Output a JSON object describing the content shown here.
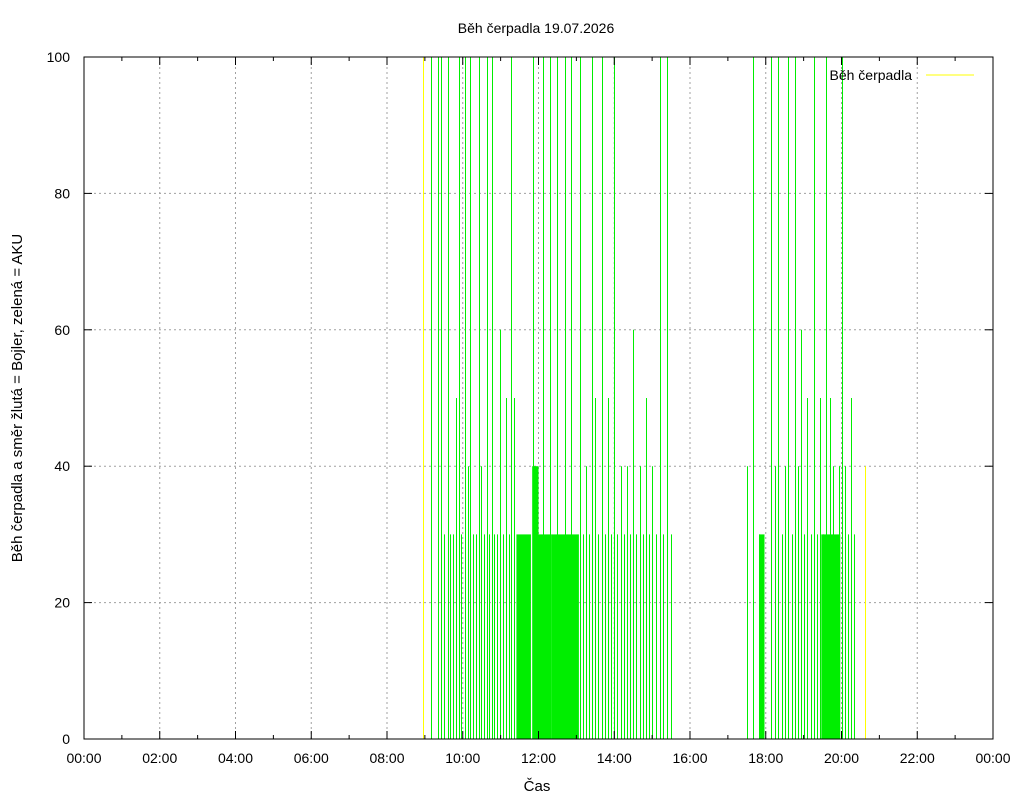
{
  "chart_data": {
    "type": "line",
    "title": "Běh čerpadla 19.07.2026",
    "xlabel": "Čas",
    "ylabel": "Běh čerpadla a směr žlutá = Bojler, zelená = AKU",
    "xlim": [
      "00:00",
      "24:00"
    ],
    "ylim": [
      0,
      100
    ],
    "x_ticks": [
      "00:00",
      "02:00",
      "04:00",
      "06:00",
      "08:00",
      "10:00",
      "12:00",
      "14:00",
      "16:00",
      "18:00",
      "20:00",
      "22:00",
      "00:00"
    ],
    "y_ticks": [
      "0",
      "20",
      "40",
      "60",
      "80",
      "100"
    ],
    "grid": true,
    "legend": {
      "position": "top-right",
      "entries": [
        {
          "name": "Běh čerpadla",
          "color": "#ffff00"
        }
      ]
    },
    "series": [
      {
        "color": "#00ee00",
        "spikes": [
          {
            "t": "09:10",
            "v": 100
          },
          {
            "t": "09:21",
            "v": 100
          },
          {
            "t": "09:26",
            "v": 100
          },
          {
            "t": "09:31",
            "v": 30
          },
          {
            "t": "09:36",
            "v": 100
          },
          {
            "t": "09:40",
            "v": 30
          },
          {
            "t": "09:45",
            "v": 30
          },
          {
            "t": "09:49",
            "v": 50
          },
          {
            "t": "09:54",
            "v": 100
          },
          {
            "t": "09:58",
            "v": 30
          },
          {
            "t": "10:03",
            "v": 100
          },
          {
            "t": "10:08",
            "v": 40
          },
          {
            "t": "10:12",
            "v": 100
          },
          {
            "t": "10:16",
            "v": 30
          },
          {
            "t": "10:21",
            "v": 30
          },
          {
            "t": "10:25",
            "v": 100
          },
          {
            "t": "10:29",
            "v": 40
          },
          {
            "t": "10:33",
            "v": 30
          },
          {
            "t": "10:38",
            "v": 100
          },
          {
            "t": "10:42",
            "v": 30
          },
          {
            "t": "10:46",
            "v": 100
          },
          {
            "t": "10:50",
            "v": 30
          },
          {
            "t": "10:55",
            "v": 30
          },
          {
            "t": "10:59",
            "v": 60
          },
          {
            "t": "11:03",
            "v": 30
          },
          {
            "t": "11:08",
            "v": 50
          },
          {
            "t": "11:13",
            "v": 30
          },
          {
            "t": "11:17",
            "v": 100
          },
          {
            "t": "11:21",
            "v": 50
          },
          {
            "t": "11:51",
            "v": 100
          },
          {
            "t": "12:07",
            "v": 100
          },
          {
            "t": "12:18",
            "v": 100
          },
          {
            "t": "12:29",
            "v": 100
          },
          {
            "t": "12:42",
            "v": 100
          },
          {
            "t": "12:52",
            "v": 100
          },
          {
            "t": "13:05",
            "v": 100
          },
          {
            "t": "13:10",
            "v": 30
          },
          {
            "t": "13:15",
            "v": 40
          },
          {
            "t": "13:20",
            "v": 30
          },
          {
            "t": "13:25",
            "v": 100
          },
          {
            "t": "13:30",
            "v": 50
          },
          {
            "t": "13:35",
            "v": 30
          },
          {
            "t": "13:40",
            "v": 100
          },
          {
            "t": "13:45",
            "v": 30
          },
          {
            "t": "13:50",
            "v": 50
          },
          {
            "t": "13:55",
            "v": 30
          },
          {
            "t": "14:00",
            "v": 100
          },
          {
            "t": "14:05",
            "v": 30
          },
          {
            "t": "14:10",
            "v": 40
          },
          {
            "t": "14:15",
            "v": 30
          },
          {
            "t": "14:20",
            "v": 40
          },
          {
            "t": "14:25",
            "v": 30
          },
          {
            "t": "14:30",
            "v": 60
          },
          {
            "t": "14:35",
            "v": 30
          },
          {
            "t": "14:40",
            "v": 40
          },
          {
            "t": "14:45",
            "v": 30
          },
          {
            "t": "14:50",
            "v": 50
          },
          {
            "t": "14:55",
            "v": 30
          },
          {
            "t": "15:00",
            "v": 40
          },
          {
            "t": "15:06",
            "v": 30
          },
          {
            "t": "15:12",
            "v": 100
          },
          {
            "t": "15:18",
            "v": 30
          },
          {
            "t": "15:24",
            "v": 100
          },
          {
            "t": "15:30",
            "v": 30
          },
          {
            "t": "17:30",
            "v": 40
          },
          {
            "t": "17:40",
            "v": 100
          },
          {
            "t": "17:50",
            "v": 30
          },
          {
            "t": "18:08",
            "v": 100
          },
          {
            "t": "18:15",
            "v": 40
          },
          {
            "t": "18:20",
            "v": 100
          },
          {
            "t": "18:25",
            "v": 30
          },
          {
            "t": "18:30",
            "v": 40
          },
          {
            "t": "18:36",
            "v": 100
          },
          {
            "t": "18:41",
            "v": 30
          },
          {
            "t": "18:46",
            "v": 100
          },
          {
            "t": "18:51",
            "v": 40
          },
          {
            "t": "18:56",
            "v": 60
          },
          {
            "t": "19:01",
            "v": 30
          },
          {
            "t": "19:06",
            "v": 50
          },
          {
            "t": "19:11",
            "v": 30
          },
          {
            "t": "19:16",
            "v": 100
          },
          {
            "t": "19:21",
            "v": 30
          },
          {
            "t": "19:26",
            "v": 50
          },
          {
            "t": "19:31",
            "v": 30
          },
          {
            "t": "19:36",
            "v": 100
          },
          {
            "t": "19:41",
            "v": 50
          },
          {
            "t": "19:46",
            "v": 40
          },
          {
            "t": "19:56",
            "v": 40
          },
          {
            "t": "20:00",
            "v": 100
          },
          {
            "t": "20:05",
            "v": 40
          },
          {
            "t": "20:10",
            "v": 30
          },
          {
            "t": "20:15",
            "v": 50
          },
          {
            "t": "20:20",
            "v": 30
          }
        ],
        "blocks": [
          {
            "start": "11:25",
            "end": "11:48",
            "v": 30
          },
          {
            "start": "11:50",
            "end": "12:00",
            "v": 40
          },
          {
            "start": "12:00",
            "end": "12:20",
            "v": 30
          },
          {
            "start": "12:20",
            "end": "13:04",
            "v": 30
          },
          {
            "start": "17:50",
            "end": "17:58",
            "v": 30
          },
          {
            "start": "19:28",
            "end": "19:58",
            "v": 30
          }
        ]
      },
      {
        "name": "Běh čerpadla",
        "color": "#ffff00",
        "spikes": [
          {
            "t": "08:57",
            "v": 100
          },
          {
            "t": "20:38",
            "v": 40
          }
        ]
      }
    ]
  }
}
